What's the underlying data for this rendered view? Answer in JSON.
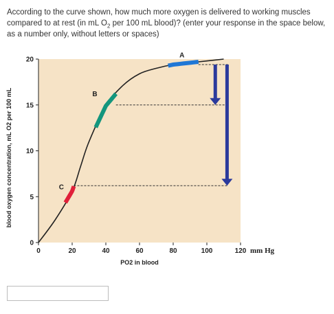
{
  "question": {
    "part1": "According to the curve shown, how much more oxygen is delivered to working muscles compared to at rest (in mL O",
    "sub": "2",
    "part2": " per 100 mL blood)? (enter your response in the space below, as a number only, without letters or spaces)"
  },
  "chart_data": {
    "type": "line",
    "title": "",
    "xlabel": "PO2 in blood",
    "x_unit": "mm Hg",
    "ylabel": "blood oxygen concentration, mL O2 per 100 mL",
    "xlim": [
      0,
      120
    ],
    "ylim": [
      0,
      20
    ],
    "x_ticks": [
      "0",
      "20",
      "40",
      "60",
      "80",
      "100",
      "120"
    ],
    "y_ticks": [
      "0",
      "5",
      "10",
      "15",
      "20"
    ],
    "x": [
      0,
      10,
      20,
      25,
      30,
      40,
      50,
      60,
      70,
      80,
      90,
      100,
      110
    ],
    "y": [
      0,
      2.5,
      5.6,
      8.3,
      11.0,
      14.9,
      17.1,
      18.4,
      19.0,
      19.4,
      19.6,
      19.8,
      20.0
    ],
    "markers": [
      {
        "label": "A",
        "x_range": [
          77,
          95
        ],
        "color": "#1f77d6"
      },
      {
        "label": "B",
        "x_range": [
          34,
          46
        ],
        "color": "#14967d"
      },
      {
        "label": "C",
        "x_range": [
          16,
          21
        ],
        "color": "#e0203a"
      }
    ],
    "reference_levels": [
      {
        "from_label": "A",
        "y": 19.4
      },
      {
        "from_label": "B",
        "y": 15.0
      },
      {
        "from_label": "C",
        "y": 6.2
      }
    ],
    "arrows": [
      {
        "x": 105,
        "y_from": 19.4,
        "y_to": 15.0,
        "color": "#2b3a9c"
      },
      {
        "x": 112,
        "y_from": 19.4,
        "y_to": 6.2,
        "color": "#2b3a9c"
      }
    ],
    "colors": {
      "background": "#f6e3c6",
      "curve": "#222222",
      "arrow": "#2b3a9c"
    }
  },
  "answer": {
    "value": ""
  }
}
